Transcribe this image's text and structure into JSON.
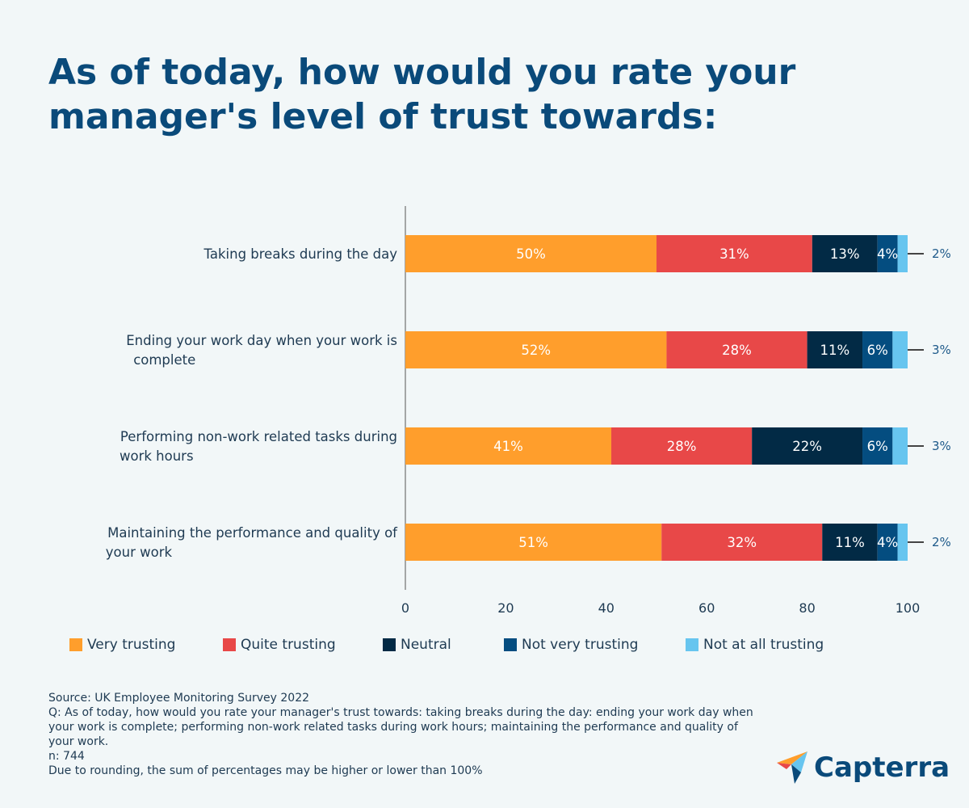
{
  "title": "As of today, how would you rate your manager's level of trust towards:",
  "chart_data": {
    "type": "bar",
    "orientation": "horizontal",
    "stacked": true,
    "categories": [
      "Taking breaks during the day",
      "Ending your work day when your work is complete",
      "Performing non-work related tasks during work hours",
      "Maintaining the performance and quality of your work"
    ],
    "series": [
      {
        "name": "Very trusting",
        "color": "#ff9e2c",
        "values": [
          50,
          52,
          41,
          51
        ]
      },
      {
        "name": "Quite trusting",
        "color": "#e84848",
        "values": [
          31,
          28,
          28,
          32
        ]
      },
      {
        "name": "Neutral",
        "color": "#022a45",
        "values": [
          13,
          11,
          22,
          11
        ]
      },
      {
        "name": "Not very trusting",
        "color": "#044d80",
        "values": [
          4,
          6,
          6,
          4
        ]
      },
      {
        "name": "Not at all trusting",
        "color": "#67c5ef",
        "values": [
          2,
          3,
          3,
          2
        ]
      }
    ],
    "xlim": [
      0,
      100
    ],
    "xticks": [
      "0",
      "20",
      "40",
      "60",
      "80",
      "100"
    ],
    "legend_position": "bottom",
    "grid": false
  },
  "source": {
    "line1": "Source: UK  Employee Monitoring Survey 2022",
    "line2": "Q: As of today, how would you rate your manager's trust towards: taking breaks during the day: ending your work day when your work is complete; performing non-work related tasks during work hours; maintaining the performance and quality of your work.",
    "line3": "n: 744",
    "line4": "Due to rounding, the sum of percentages may be higher or lower than 100%"
  },
  "logo": {
    "text": "Capterra"
  }
}
